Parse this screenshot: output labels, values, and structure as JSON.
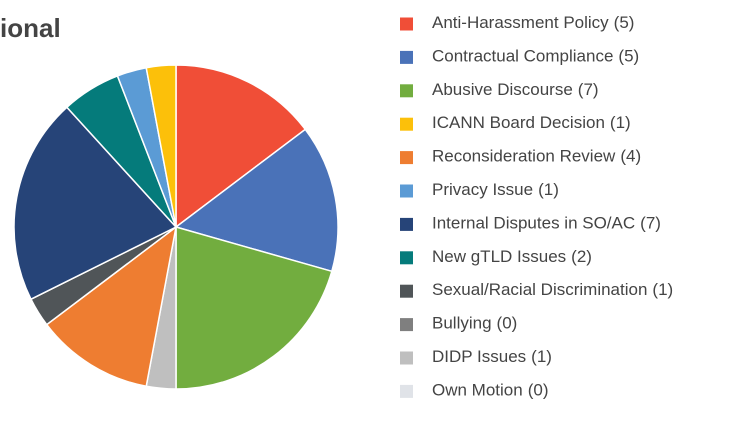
{
  "chart_data": {
    "type": "pie",
    "title": "ional",
    "categories": [
      "Anti-Harassment Policy",
      "Contractual Compliance",
      "Abusive Discourse",
      "ICANN Board Decision",
      "Reconsideration Review",
      "Privacy Issue",
      "Internal Disputes in SO/AC",
      "New gTLD Issues",
      "Sexual/Racial Discrimination",
      "Bullying",
      "DIDP Issues",
      "Own Motion"
    ],
    "values": [
      5,
      5,
      7,
      1,
      4,
      1,
      7,
      2,
      1,
      0,
      1,
      0
    ],
    "value_labels": [
      "(5)",
      "(5)",
      "(7)",
      "(1)",
      "(4)",
      "(1)",
      "(7)",
      "(2)",
      "(1)",
      "(0)",
      "(1)",
      "(0)"
    ],
    "colors": [
      "#f04e37",
      "#4a72b8",
      "#72ad3f",
      "#fcc00a",
      "#ee7d31",
      "#5b9bd5",
      "#264478",
      "#057b7b",
      "#505558",
      "#7f7f7f",
      "#bfbfbf",
      "#e0e3e8"
    ],
    "legend": "right"
  }
}
